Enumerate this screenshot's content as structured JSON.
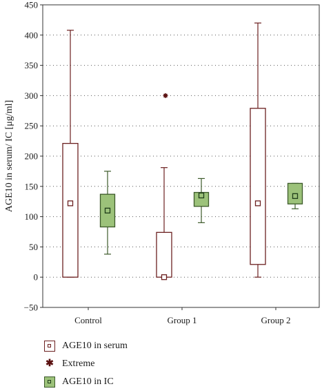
{
  "chart_data": {
    "type": "box",
    "ylabel": "AGE10 in serum/ IC [μg/ml]",
    "ylim": [
      -50,
      450
    ],
    "yticks": [
      -50,
      0,
      50,
      100,
      150,
      200,
      250,
      300,
      350,
      400,
      450
    ],
    "ytick_labels": [
      "−50",
      "0",
      "50",
      "100",
      "150",
      "200",
      "250",
      "300",
      "350",
      "400",
      "450"
    ],
    "grid": "horizontal dotted",
    "categories": [
      "Control",
      "Group 1",
      "Group 2"
    ],
    "series": [
      {
        "name": "AGE10 in serum",
        "color": "#6b1f1f",
        "fill": "#ffffff",
        "boxes": [
          {
            "category": "Control",
            "min": 0,
            "q1": 0,
            "median": 122,
            "q3": 221,
            "max": 408
          },
          {
            "category": "Group 1",
            "min": 0,
            "q1": 0,
            "median": 0,
            "q3": 74,
            "max": 181,
            "extremes": [
              300
            ]
          },
          {
            "category": "Group 2",
            "min": 0,
            "q1": 21,
            "median": 122,
            "q3": 279,
            "max": 420
          }
        ]
      },
      {
        "name": "AGE10 in IC",
        "color": "#3c5a2a",
        "fill": "#9cc27a",
        "boxes": [
          {
            "category": "Control",
            "min": 38,
            "q1": 83,
            "median": 110,
            "q3": 137,
            "max": 175
          },
          {
            "category": "Group 1",
            "min": 90,
            "q1": 117,
            "median": 135,
            "q3": 140,
            "max": 163
          },
          {
            "category": "Group 2",
            "min": 113,
            "q1": 121,
            "median": 134,
            "q3": 155,
            "max": 155
          }
        ]
      }
    ],
    "legend": [
      {
        "label": "AGE10 in serum",
        "kind": "serum"
      },
      {
        "label": "Extreme",
        "kind": "extreme"
      },
      {
        "label": "AGE10 in IC",
        "kind": "ic"
      }
    ],
    "legend_position": "bottom-left"
  }
}
